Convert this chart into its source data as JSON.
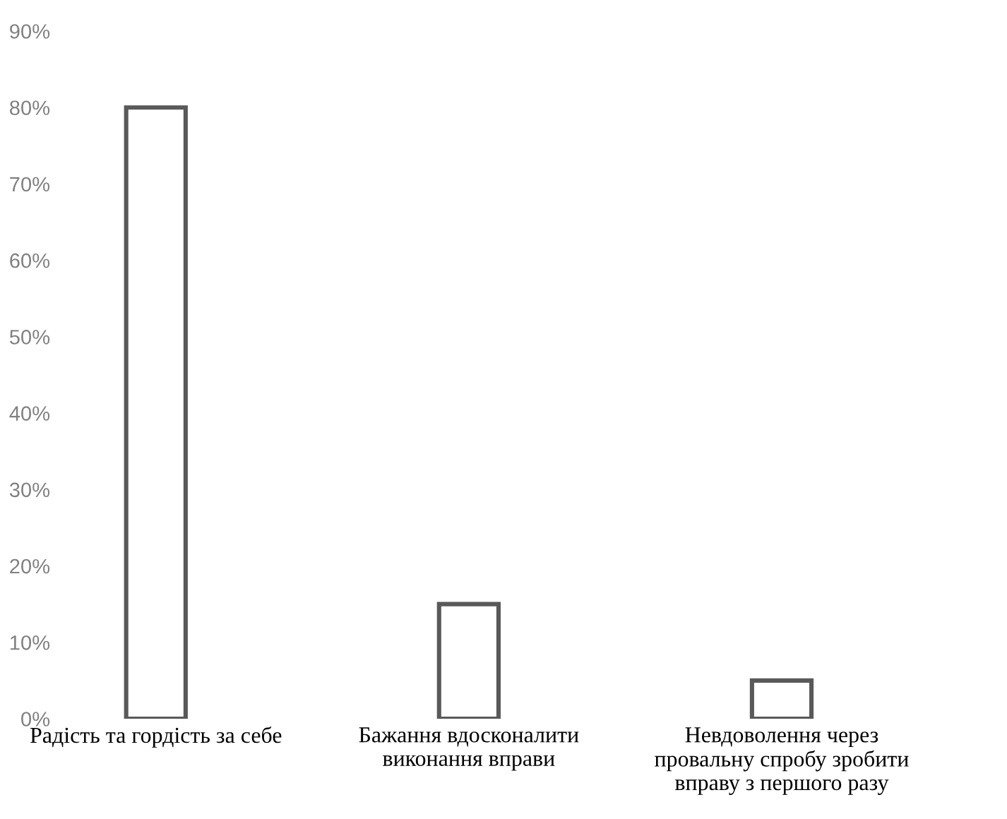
{
  "chart_data": {
    "type": "bar",
    "categories": [
      "Радість та гордість за себе",
      "Бажання вдосконалити\nвиконання вправи",
      "Невдоволення через\nпровальну спробу зробити\nвправу з першого разу"
    ],
    "series": [
      {
        "color": "#595959",
        "values": [
          80,
          15,
          5
        ]
      }
    ],
    "ylim": [
      0,
      90
    ],
    "yticks": [
      {
        "value": 0,
        "label": "0%"
      },
      {
        "value": 10,
        "label": "10%"
      },
      {
        "value": 20,
        "label": "20%"
      },
      {
        "value": 30,
        "label": "30%"
      },
      {
        "value": 40,
        "label": "40%"
      },
      {
        "value": 50,
        "label": "50%"
      },
      {
        "value": 60,
        "label": "60%"
      },
      {
        "value": 70,
        "label": "70%"
      },
      {
        "value": 80,
        "label": "80%"
      },
      {
        "value": 90,
        "label": "90%"
      }
    ],
    "grid": false,
    "legend": false
  }
}
